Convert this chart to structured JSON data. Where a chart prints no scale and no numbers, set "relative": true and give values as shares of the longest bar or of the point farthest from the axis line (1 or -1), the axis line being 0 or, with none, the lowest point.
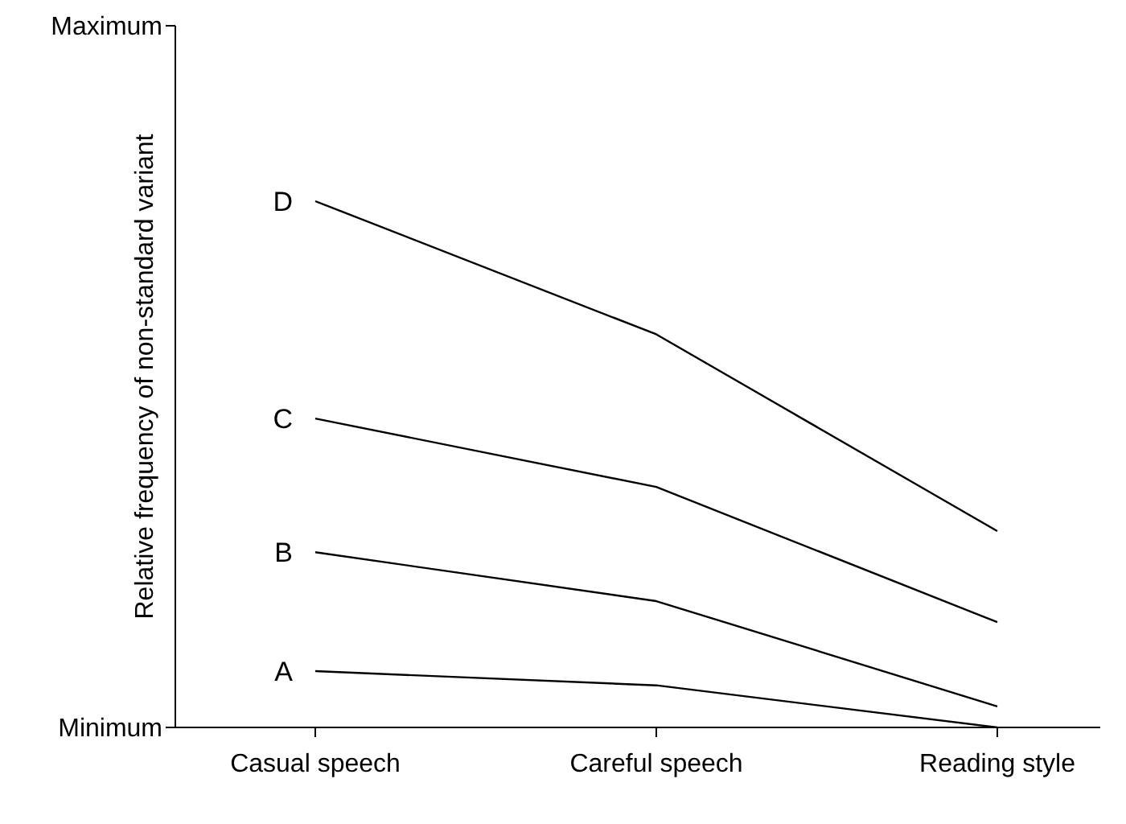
{
  "chart_data": {
    "type": "line",
    "ylabel": "Relative frequency of non-standard variant",
    "relative": true,
    "annotations": [
      "Maximum",
      "Minimum"
    ],
    "categories": [
      "Casual speech",
      "Careful speech",
      "Reading style"
    ],
    "series": [
      {
        "name": "D",
        "color": "#000000",
        "values": [
          1,
          0.747,
          0.373
        ]
      },
      {
        "name": "C",
        "color": "#000000",
        "values": [
          0.587,
          0.457,
          0.2
        ]
      },
      {
        "name": "B",
        "color": "#000000",
        "values": [
          0.333,
          0.24,
          0.04
        ]
      },
      {
        "name": "A",
        "color": "#000000",
        "values": [
          0.107,
          0.08,
          0
        ]
      }
    ],
    "grid": false,
    "legend": false,
    "marker": "none",
    "line_style": "solid"
  }
}
